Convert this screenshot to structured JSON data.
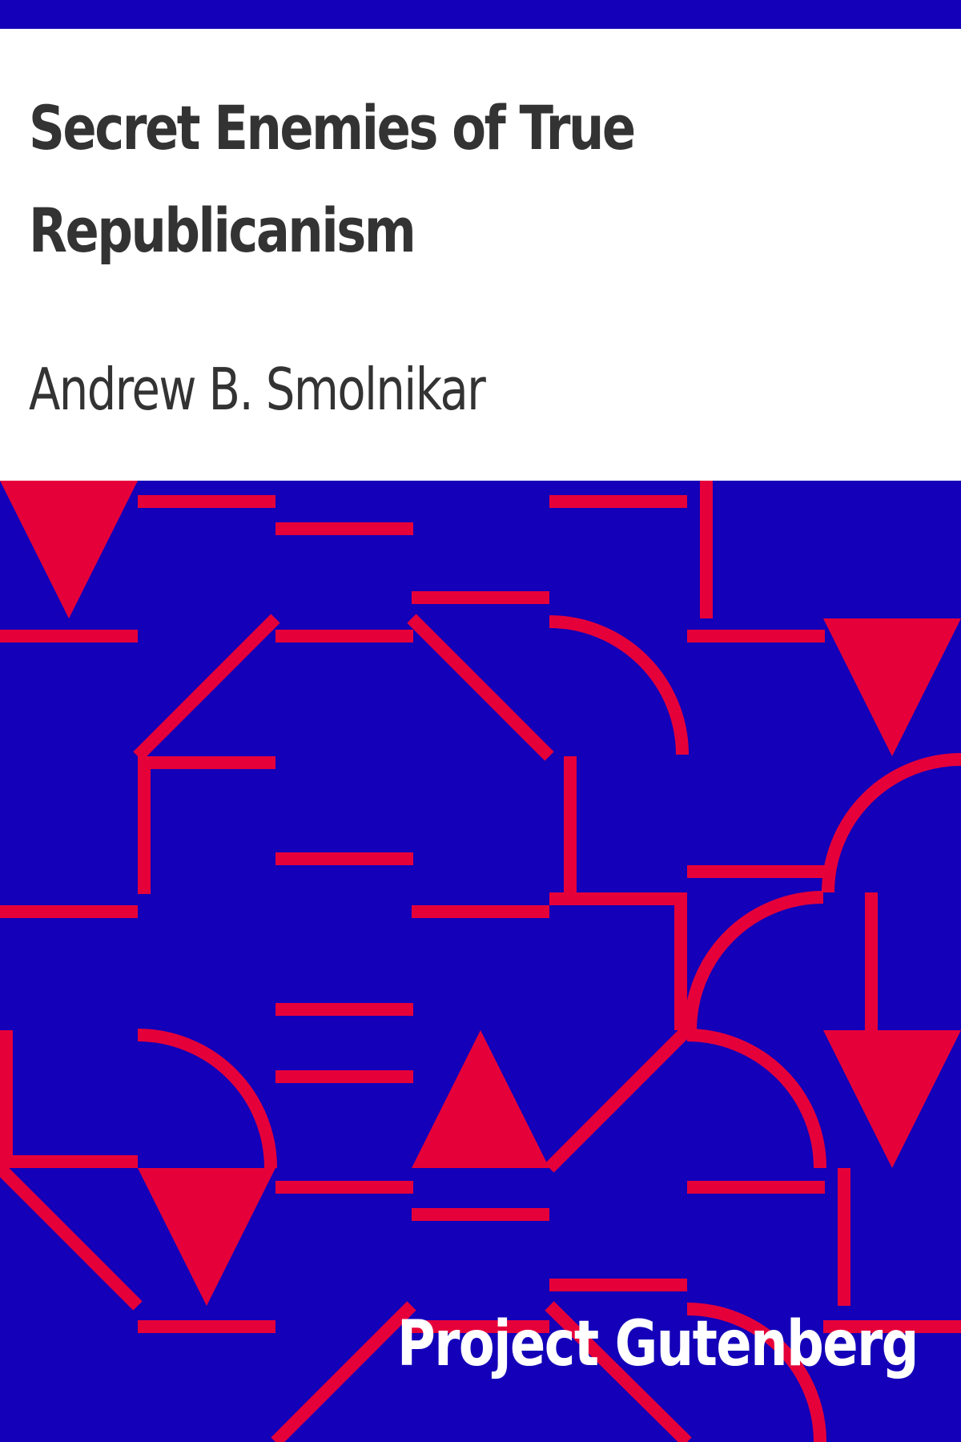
{
  "cover": {
    "title": "Secret Enemies of True Republicanism",
    "author": "Andrew B. Smolnikar",
    "publisher": "Project Gutenberg"
  },
  "colors": {
    "background": "#ffffff",
    "text": "#333333",
    "pattern_background": "#1400b8",
    "pattern_shapes": "#e6003a",
    "publisher_text": "#ffffff"
  }
}
